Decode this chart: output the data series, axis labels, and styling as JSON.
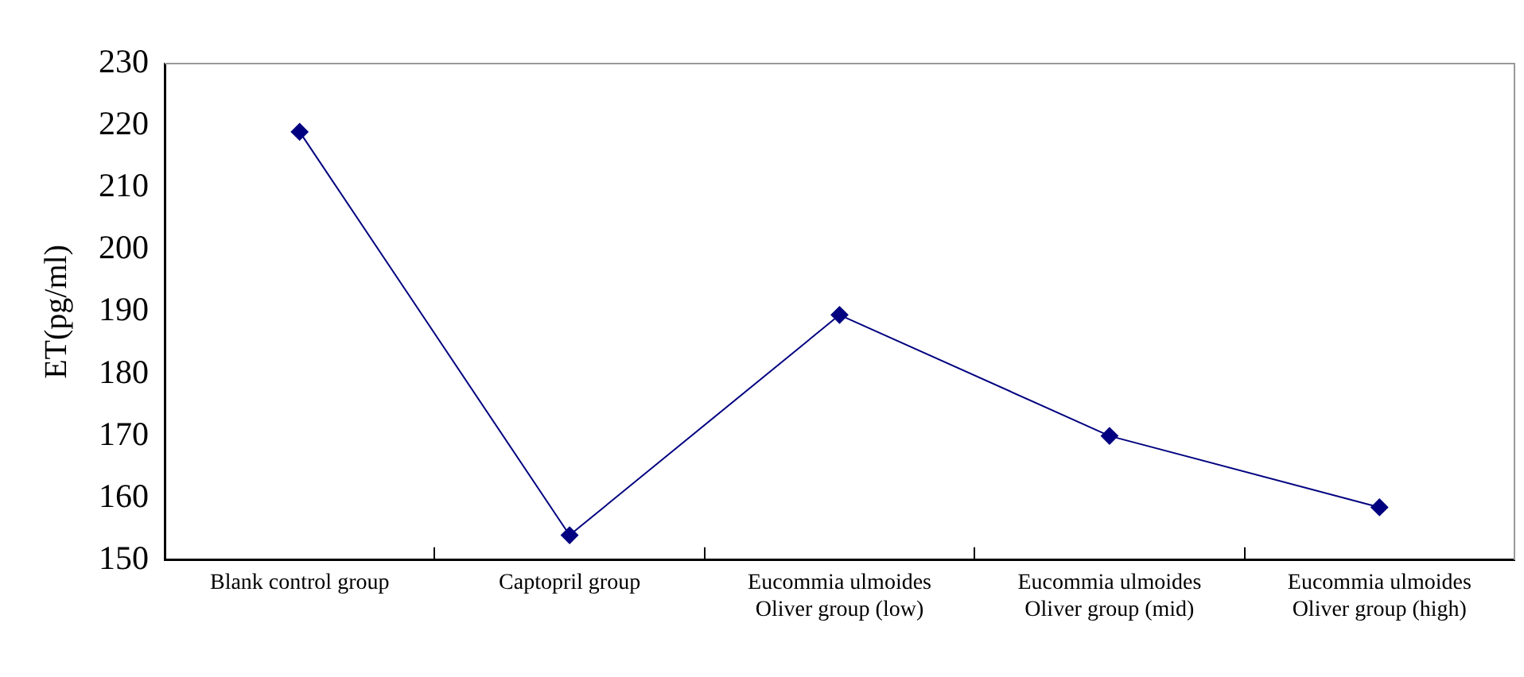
{
  "chart_data": {
    "type": "line",
    "ylabel": "ET(pg/ml)",
    "categories": [
      "Blank control group",
      "Captopril group",
      "Eucommia ulmoides Oliver group (low)",
      "Eucommia ulmoides Oliver group (mid)",
      "Eucommia ulmoides Oliver group (high)"
    ],
    "series": [
      {
        "color": "#000080",
        "values": [
          219,
          154,
          189.5,
          170,
          158.5
        ]
      }
    ],
    "ylim": [
      150,
      230
    ],
    "yticks": [
      150,
      160,
      170,
      180,
      190,
      200,
      210,
      220,
      230
    ],
    "grid": false,
    "legend": false,
    "marker": "diamond",
    "line_style": "solid"
  }
}
